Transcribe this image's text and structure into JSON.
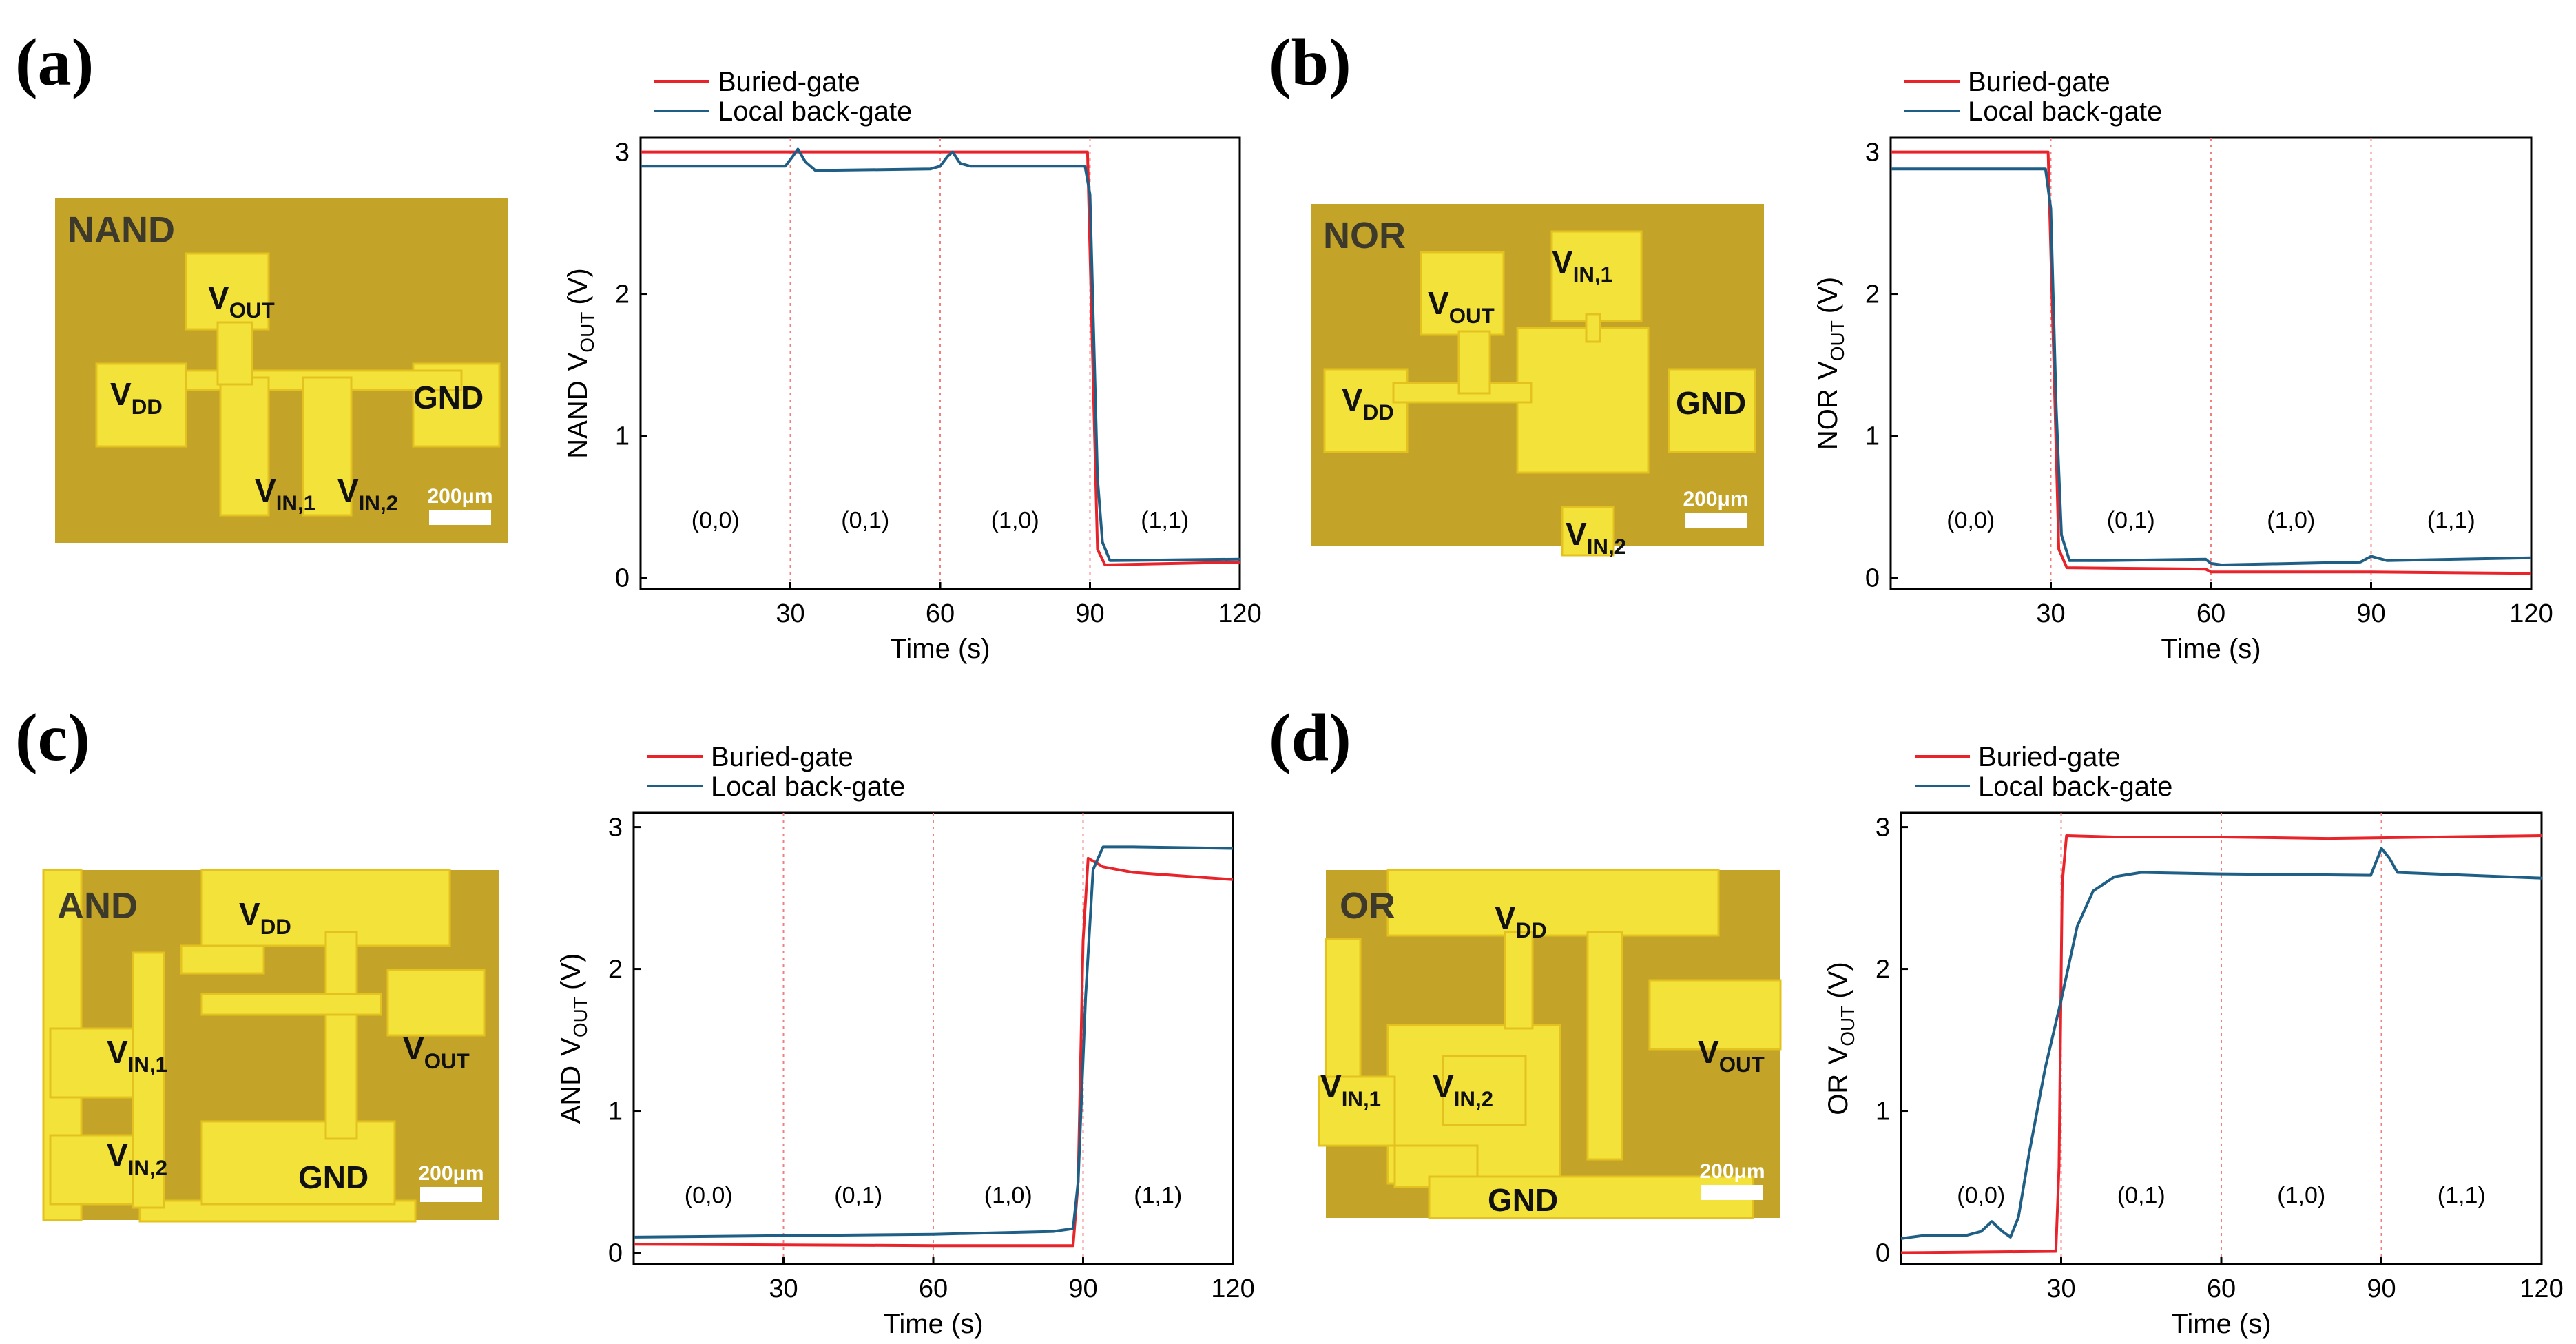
{
  "panels": [
    {
      "letter": "(a)",
      "micro": {
        "title": "NAND",
        "labels": [
          {
            "name": "vout-label",
            "base": "V",
            "sub": "OUT"
          },
          {
            "name": "vdd-label",
            "base": "V",
            "sub": "DD"
          },
          {
            "name": "gnd-label",
            "base": "GND",
            "sub": ""
          },
          {
            "name": "vin1-label",
            "base": "V",
            "sub": "IN,1"
          },
          {
            "name": "vin2-label",
            "base": "V",
            "sub": "IN,2"
          }
        ],
        "scalebar": "200μm"
      },
      "chart": {
        "type": "line",
        "gate": "NAND",
        "ylabel_sub": "OUT",
        "ylabel_tail": "(V)",
        "xlabel": "Time (s)",
        "xlim": [
          0,
          120
        ],
        "ylim": [
          -0.08,
          3.1
        ],
        "xticks": [
          30,
          60,
          90,
          120
        ],
        "yticks": [
          0,
          1,
          2,
          3
        ],
        "dividers": [
          30,
          60,
          90
        ],
        "states": [
          {
            "label": "(0,0)",
            "x": 15,
            "y": 0.35
          },
          {
            "label": "(0,1)",
            "x": 45,
            "y": 0.35
          },
          {
            "label": "(1,0)",
            "x": 75,
            "y": 0.35
          },
          {
            "label": "(1,1)",
            "x": 105,
            "y": 0.35
          }
        ],
        "series": [
          {
            "name": "Buried-gate",
            "color": "#e8242a",
            "points": [
              [
                0,
                3.0
              ],
              [
                89.5,
                3.0
              ],
              [
                90.5,
                1.6
              ],
              [
                91.5,
                0.2
              ],
              [
                93,
                0.09
              ],
              [
                120,
                0.11
              ]
            ]
          },
          {
            "name": "Local back-gate",
            "color": "#1f5f86",
            "points": [
              [
                0,
                2.9
              ],
              [
                29,
                2.9
              ],
              [
                30.5,
                2.97
              ],
              [
                31.5,
                3.02
              ],
              [
                33,
                2.93
              ],
              [
                35,
                2.87
              ],
              [
                58,
                2.88
              ],
              [
                60,
                2.9
              ],
              [
                61.5,
                2.97
              ],
              [
                62.5,
                3.0
              ],
              [
                64,
                2.92
              ],
              [
                66,
                2.9
              ],
              [
                89,
                2.9
              ],
              [
                90,
                2.7
              ],
              [
                91.5,
                0.7
              ],
              [
                92.5,
                0.25
              ],
              [
                94,
                0.12
              ],
              [
                120,
                0.13
              ]
            ]
          }
        ]
      }
    },
    {
      "letter": "(b)",
      "micro": {
        "title": "NOR",
        "labels": [
          {
            "name": "vout-label",
            "base": "V",
            "sub": "OUT"
          },
          {
            "name": "vin1-label",
            "base": "V",
            "sub": "IN,1"
          },
          {
            "name": "vdd-label",
            "base": "V",
            "sub": "DD"
          },
          {
            "name": "gnd-label",
            "base": "GND",
            "sub": ""
          },
          {
            "name": "vin2-label",
            "base": "V",
            "sub": "IN,2"
          }
        ],
        "scalebar": "200μm"
      },
      "chart": {
        "type": "line",
        "gate": "NOR",
        "ylabel_sub": "OUT",
        "ylabel_tail": "(V)",
        "xlabel": "Time (s)",
        "xlim": [
          0,
          120
        ],
        "ylim": [
          -0.08,
          3.1
        ],
        "xticks": [
          30,
          60,
          90,
          120
        ],
        "yticks": [
          0,
          1,
          2,
          3
        ],
        "dividers": [
          30,
          60,
          90
        ],
        "states": [
          {
            "label": "(0,0)",
            "x": 15,
            "y": 0.35
          },
          {
            "label": "(0,1)",
            "x": 45,
            "y": 0.35
          },
          {
            "label": "(1,0)",
            "x": 75,
            "y": 0.35
          },
          {
            "label": "(1,1)",
            "x": 105,
            "y": 0.35
          }
        ],
        "series": [
          {
            "name": "Buried-gate",
            "color": "#e8242a",
            "points": [
              [
                0,
                3.0
              ],
              [
                29.5,
                3.0
              ],
              [
                30.5,
                1.6
              ],
              [
                31.5,
                0.2
              ],
              [
                33,
                0.07
              ],
              [
                59,
                0.06
              ],
              [
                60,
                0.04
              ],
              [
                90,
                0.04
              ],
              [
                120,
                0.03
              ]
            ]
          },
          {
            "name": "Local back-gate",
            "color": "#1f5f86",
            "points": [
              [
                0,
                2.88
              ],
              [
                29,
                2.88
              ],
              [
                30,
                2.6
              ],
              [
                31,
                1.2
              ],
              [
                32,
                0.3
              ],
              [
                33.5,
                0.12
              ],
              [
                40,
                0.12
              ],
              [
                59,
                0.13
              ],
              [
                60,
                0.1
              ],
              [
                62,
                0.09
              ],
              [
                88,
                0.11
              ],
              [
                90,
                0.15
              ],
              [
                91,
                0.14
              ],
              [
                93,
                0.12
              ],
              [
                120,
                0.14
              ]
            ]
          }
        ]
      }
    },
    {
      "letter": "(c)",
      "micro": {
        "title": "AND",
        "labels": [
          {
            "name": "vdd-label",
            "base": "V",
            "sub": "DD"
          },
          {
            "name": "vout-label",
            "base": "V",
            "sub": "OUT"
          },
          {
            "name": "vin1-label",
            "base": "V",
            "sub": "IN,1"
          },
          {
            "name": "vin2-label",
            "base": "V",
            "sub": "IN,2"
          },
          {
            "name": "gnd-label",
            "base": "GND",
            "sub": ""
          }
        ],
        "scalebar": "200μm"
      },
      "chart": {
        "type": "line",
        "gate": "AND",
        "ylabel_sub": "OUT",
        "ylabel_tail": "(V)",
        "xlabel": "Time (s)",
        "xlim": [
          0,
          120
        ],
        "ylim": [
          -0.08,
          3.1
        ],
        "xticks": [
          30,
          60,
          90,
          120
        ],
        "yticks": [
          0,
          1,
          2,
          3
        ],
        "dividers": [
          30,
          60,
          90
        ],
        "states": [
          {
            "label": "(0,0)",
            "x": 15,
            "y": 0.35
          },
          {
            "label": "(0,1)",
            "x": 45,
            "y": 0.35
          },
          {
            "label": "(1,0)",
            "x": 75,
            "y": 0.35
          },
          {
            "label": "(1,1)",
            "x": 105,
            "y": 0.35
          }
        ],
        "series": [
          {
            "name": "Buried-gate",
            "color": "#e8242a",
            "points": [
              [
                0,
                0.06
              ],
              [
                60,
                0.05
              ],
              [
                88,
                0.05
              ],
              [
                89,
                0.5
              ],
              [
                90,
                2.2
              ],
              [
                91,
                2.78
              ],
              [
                94,
                2.72
              ],
              [
                100,
                2.68
              ],
              [
                120,
                2.63
              ]
            ]
          },
          {
            "name": "Local back-gate",
            "color": "#1f5f86",
            "points": [
              [
                0,
                0.11
              ],
              [
                30,
                0.12
              ],
              [
                60,
                0.13
              ],
              [
                84,
                0.15
              ],
              [
                88,
                0.17
              ],
              [
                89,
                0.5
              ],
              [
                90.5,
                1.8
              ],
              [
                92,
                2.7
              ],
              [
                94,
                2.86
              ],
              [
                100,
                2.86
              ],
              [
                120,
                2.85
              ]
            ]
          }
        ]
      }
    },
    {
      "letter": "(d)",
      "micro": {
        "title": "OR",
        "labels": [
          {
            "name": "vdd-label",
            "base": "V",
            "sub": "DD"
          },
          {
            "name": "vout-label",
            "base": "V",
            "sub": "OUT"
          },
          {
            "name": "vin1-label",
            "base": "V",
            "sub": "IN,1"
          },
          {
            "name": "vin2-label",
            "base": "V",
            "sub": "IN,2"
          },
          {
            "name": "gnd-label",
            "base": "GND",
            "sub": ""
          }
        ],
        "scalebar": "200μm"
      },
      "chart": {
        "type": "line",
        "gate": "OR",
        "ylabel_sub": "OUT",
        "ylabel_tail": "(V)",
        "xlabel": "Time (s)",
        "xlim": [
          0,
          120
        ],
        "ylim": [
          -0.08,
          3.1
        ],
        "xticks": [
          30,
          60,
          90,
          120
        ],
        "yticks": [
          0,
          1,
          2,
          3
        ],
        "dividers": [
          30,
          60,
          90
        ],
        "states": [
          {
            "label": "(0,0)",
            "x": 15,
            "y": 0.35
          },
          {
            "label": "(0,1)",
            "x": 45,
            "y": 0.35
          },
          {
            "label": "(1,0)",
            "x": 75,
            "y": 0.35
          },
          {
            "label": "(1,1)",
            "x": 105,
            "y": 0.35
          }
        ],
        "series": [
          {
            "name": "Buried-gate",
            "color": "#e8242a",
            "points": [
              [
                0,
                0.0
              ],
              [
                29,
                0.01
              ],
              [
                29.6,
                0.6
              ],
              [
                30.2,
                2.6
              ],
              [
                31,
                2.94
              ],
              [
                40,
                2.93
              ],
              [
                60,
                2.93
              ],
              [
                80,
                2.92
              ],
              [
                120,
                2.94
              ]
            ]
          },
          {
            "name": "Local back-gate",
            "color": "#1f5f86",
            "points": [
              [
                0,
                0.1
              ],
              [
                4,
                0.12
              ],
              [
                12,
                0.12
              ],
              [
                15,
                0.15
              ],
              [
                17,
                0.22
              ],
              [
                19,
                0.15
              ],
              [
                20.5,
                0.11
              ],
              [
                22,
                0.25
              ],
              [
                24,
                0.7
              ],
              [
                27,
                1.3
              ],
              [
                30,
                1.78
              ],
              [
                33,
                2.3
              ],
              [
                36,
                2.55
              ],
              [
                40,
                2.65
              ],
              [
                45,
                2.68
              ],
              [
                60,
                2.67
              ],
              [
                88,
                2.66
              ],
              [
                90,
                2.85
              ],
              [
                91.5,
                2.78
              ],
              [
                93,
                2.68
              ],
              [
                120,
                2.64
              ]
            ]
          }
        ]
      }
    }
  ]
}
